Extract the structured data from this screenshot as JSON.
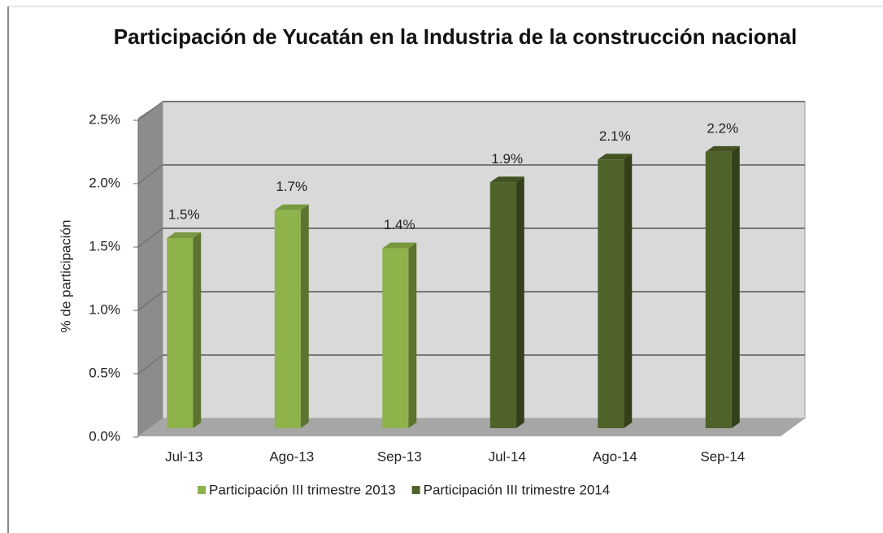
{
  "chart_data": {
    "type": "bar3d",
    "title": "Participación de Yucatán en la Industria de la construcción nacional",
    "y_label": "% de participación",
    "categories": [
      "Jul-13",
      "Ago-13",
      "Sep-13",
      "Jul-14",
      "Ago-14",
      "Sep-14"
    ],
    "series": [
      {
        "name": "Participación III trimestre 2013",
        "color": "#8db34a",
        "values": [
          1.5,
          1.72,
          1.42,
          null,
          null,
          null
        ],
        "value_labels": [
          "1.5%",
          "1.7%",
          "1.4%",
          null,
          null,
          null
        ]
      },
      {
        "name": "Participación III trimestre 2014",
        "color": "#4f6228",
        "values": [
          null,
          null,
          null,
          1.94,
          2.12,
          2.18
        ],
        "value_labels": [
          null,
          null,
          null,
          "1.9%",
          "2.1%",
          "2.2%"
        ]
      }
    ],
    "ylim": [
      0,
      2.5
    ],
    "yticks": [
      {
        "value": 0,
        "label": "0.0%"
      },
      {
        "value": 0.5,
        "label": "0.5%"
      },
      {
        "value": 1,
        "label": "1.0%"
      },
      {
        "value": 1.5,
        "label": "1.5%"
      },
      {
        "value": 2,
        "label": "2.0%"
      },
      {
        "value": 2.5,
        "label": "2.5%"
      }
    ],
    "grid": true,
    "legend": "bottom"
  }
}
